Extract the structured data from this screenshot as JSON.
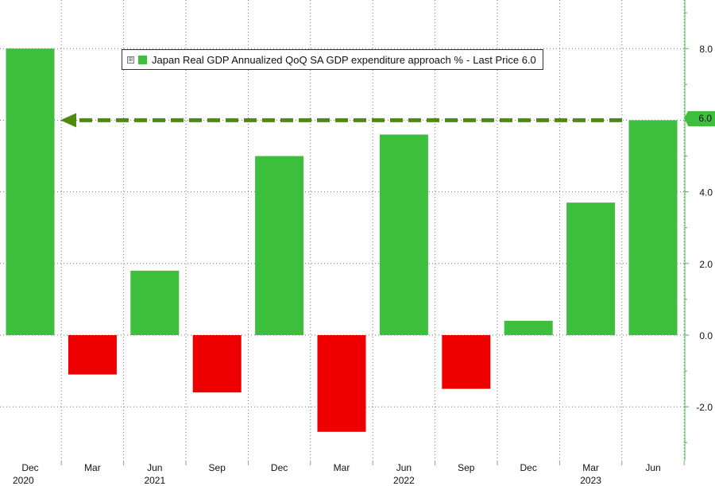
{
  "legend": {
    "series_label": "Japan Real GDP Annualized QoQ SA GDP expenditure approach %",
    "last_price_label": "Last Price",
    "last_price_value": "6.0",
    "expander_symbol": "⊞"
  },
  "colors": {
    "positive": "#3dbf3d",
    "negative": "#ee0000",
    "arrow": "#4f8a10",
    "axis": "#3dbf3d",
    "grid": "#777777"
  },
  "chart_data": {
    "type": "bar",
    "categories": [
      "Dec",
      "Mar",
      "Jun",
      "Sep",
      "Dec",
      "Mar",
      "Jun",
      "Sep",
      "Dec",
      "Mar",
      "Jun"
    ],
    "year_labels": [
      {
        "text": "2020",
        "index": 0
      },
      {
        "text": "2021",
        "index": 2
      },
      {
        "text": "2022",
        "index": 6
      },
      {
        "text": "2023",
        "index": 9
      }
    ],
    "series": [
      {
        "name": "Japan Real GDP Annualized QoQ SA GDP expenditure approach %",
        "values": [
          8.0,
          -1.1,
          1.8,
          -1.6,
          5.0,
          -2.7,
          5.6,
          -1.5,
          0.4,
          3.7,
          6.0
        ]
      }
    ],
    "ylim": [
      -3.4,
      9.4
    ],
    "yticks": [
      -2.0,
      0.0,
      2.0,
      4.0,
      6.0,
      8.0
    ],
    "ytick_labels": [
      "-2.0",
      "0.0",
      "2.0",
      "4.0",
      "6.0",
      "8.0"
    ],
    "reference_line": {
      "value": 6.0,
      "style": "dashed-arrow"
    },
    "last_value": 6.0,
    "grid": true,
    "legend_position": "top-left"
  }
}
